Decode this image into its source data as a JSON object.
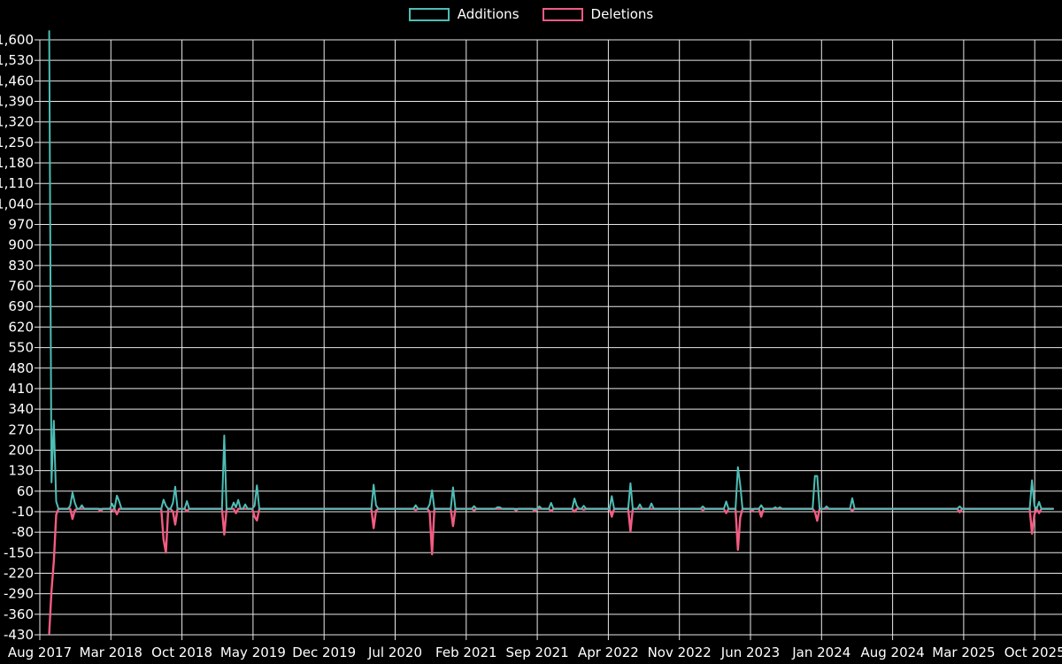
{
  "chart_data": {
    "type": "line",
    "title": "",
    "legend_position": "top-center",
    "background_color": "#000000",
    "grid_color": "#e9e9e9",
    "text_color": "#ffffff",
    "grid": "on",
    "y_axis": {
      "min": -430,
      "max": 1600,
      "step": 70,
      "tick_values": [
        1600,
        1530,
        1460,
        1390,
        1320,
        1250,
        1180,
        1110,
        1040,
        970,
        900,
        830,
        760,
        690,
        620,
        550,
        480,
        410,
        340,
        270,
        200,
        130,
        60,
        -10,
        -80,
        -150,
        -220,
        -290,
        -360,
        -430
      ]
    },
    "x_axis": {
      "tick_labels": [
        "Aug 2017",
        "Mar 2018",
        "Oct 2018",
        "May 2019",
        "Dec 2019",
        "Jul 2020",
        "Feb 2021",
        "Sep 2021",
        "Apr 2022",
        "Nov 2022",
        "Jun 2023",
        "Jan 2024",
        "Aug 2024",
        "Mar 2025",
        "Oct 2025"
      ],
      "tick_interval_months": 7,
      "weeks_per_tick": 30.44,
      "data_start_week": 4,
      "data_end_week": 434
    },
    "series": [
      {
        "name": "Additions",
        "color": "#4dbeb6",
        "unit": "lines",
        "points": [
          [
            4,
            1630
          ],
          [
            5,
            90
          ],
          [
            6,
            300
          ],
          [
            7,
            25
          ],
          [
            13,
            10
          ],
          [
            14,
            55
          ],
          [
            15,
            20
          ],
          [
            18,
            12
          ],
          [
            31,
            17
          ],
          [
            33,
            45
          ],
          [
            34,
            25
          ],
          [
            53,
            31
          ],
          [
            54,
            10
          ],
          [
            57,
            20
          ],
          [
            58,
            75
          ],
          [
            63,
            26
          ],
          [
            79,
            250
          ],
          [
            83,
            21
          ],
          [
            84,
            5
          ],
          [
            85,
            30
          ],
          [
            88,
            15
          ],
          [
            92,
            10
          ],
          [
            93,
            80
          ],
          [
            143,
            82
          ],
          [
            144,
            12
          ],
          [
            161,
            12
          ],
          [
            167,
            15
          ],
          [
            168,
            63
          ],
          [
            177,
            73
          ],
          [
            186,
            9
          ],
          [
            196,
            5
          ],
          [
            197,
            5
          ],
          [
            214,
            8
          ],
          [
            219,
            20
          ],
          [
            229,
            35
          ],
          [
            230,
            10
          ],
          [
            233,
            10
          ],
          [
            245,
            43
          ],
          [
            253,
            87
          ],
          [
            257,
            15
          ],
          [
            262,
            18
          ],
          [
            284,
            8
          ],
          [
            294,
            25
          ],
          [
            299,
            142
          ],
          [
            300,
            82
          ],
          [
            309,
            12
          ],
          [
            315,
            5
          ],
          [
            317,
            5
          ],
          [
            332,
            112
          ],
          [
            333,
            112
          ],
          [
            337,
            8
          ],
          [
            348,
            36
          ],
          [
            394,
            8
          ],
          [
            425,
            97
          ],
          [
            426,
            10
          ],
          [
            428,
            23
          ]
        ]
      },
      {
        "name": "Deletions",
        "color": "#f25c82",
        "unit": "lines",
        "points": [
          [
            4,
            -425
          ],
          [
            5,
            -280
          ],
          [
            6,
            -180
          ],
          [
            7,
            -20
          ],
          [
            14,
            -35
          ],
          [
            15,
            -5
          ],
          [
            26,
            -8
          ],
          [
            31,
            -5
          ],
          [
            33,
            -19
          ],
          [
            53,
            -105
          ],
          [
            54,
            -150
          ],
          [
            57,
            -10
          ],
          [
            58,
            -54
          ],
          [
            63,
            -8
          ],
          [
            79,
            -88
          ],
          [
            84,
            -15
          ],
          [
            92,
            -27
          ],
          [
            93,
            -40
          ],
          [
            143,
            -66
          ],
          [
            144,
            -6
          ],
          [
            161,
            -4
          ],
          [
            167,
            -10
          ],
          [
            168,
            -155
          ],
          [
            177,
            -59
          ],
          [
            186,
            -5
          ],
          [
            204,
            -5
          ],
          [
            212,
            -8
          ],
          [
            219,
            -8
          ],
          [
            229,
            -10
          ],
          [
            233,
            -3
          ],
          [
            245,
            -27
          ],
          [
            253,
            -77
          ],
          [
            284,
            -4
          ],
          [
            294,
            -15
          ],
          [
            299,
            -140
          ],
          [
            300,
            -30
          ],
          [
            305,
            -8
          ],
          [
            309,
            -27
          ],
          [
            332,
            -10
          ],
          [
            333,
            -41
          ],
          [
            348,
            -5
          ],
          [
            394,
            -12
          ],
          [
            425,
            -85
          ],
          [
            426,
            -20
          ],
          [
            428,
            -15
          ]
        ]
      }
    ]
  }
}
